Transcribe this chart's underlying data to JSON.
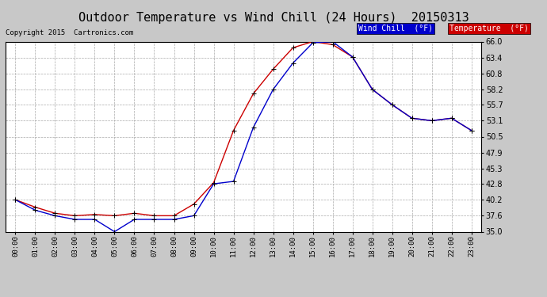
{
  "title": "Outdoor Temperature vs Wind Chill (24 Hours)  20150313",
  "copyright": "Copyright 2015  Cartronics.com",
  "hours": [
    "00:00",
    "01:00",
    "02:00",
    "03:00",
    "04:00",
    "05:00",
    "06:00",
    "07:00",
    "08:00",
    "09:00",
    "10:00",
    "11:00",
    "12:00",
    "13:00",
    "14:00",
    "15:00",
    "16:00",
    "17:00",
    "18:00",
    "19:00",
    "20:00",
    "21:00",
    "22:00",
    "23:00"
  ],
  "temperature": [
    40.2,
    39.0,
    38.0,
    37.6,
    37.8,
    37.6,
    38.0,
    37.6,
    37.6,
    39.5,
    43.0,
    51.5,
    57.5,
    61.5,
    65.0,
    66.0,
    65.5,
    63.5,
    58.2,
    55.7,
    53.5,
    53.1,
    53.5,
    51.5
  ],
  "wind_chill": [
    40.2,
    38.5,
    37.6,
    37.0,
    37.0,
    35.0,
    37.0,
    37.0,
    37.0,
    37.6,
    42.8,
    43.2,
    52.0,
    58.2,
    62.5,
    65.8,
    66.0,
    63.5,
    58.2,
    55.7,
    53.5,
    53.1,
    53.5,
    51.5
  ],
  "temp_color": "#cc0000",
  "wind_chill_color": "#0000cc",
  "ylim": [
    35.0,
    66.0
  ],
  "yticks": [
    35.0,
    37.6,
    40.2,
    42.8,
    45.3,
    47.9,
    50.5,
    53.1,
    55.7,
    58.2,
    60.8,
    63.4,
    66.0
  ],
  "bg_color": "#c8c8c8",
  "plot_bg_color": "#ffffff",
  "grid_color": "#aaaaaa",
  "title_fontsize": 11,
  "legend_wind_chill_bg": "#0000cc",
  "legend_temp_bg": "#cc0000",
  "legend_text_wc": "Wind Chill  (°F)",
  "legend_text_temp": "Temperature  (°F)"
}
